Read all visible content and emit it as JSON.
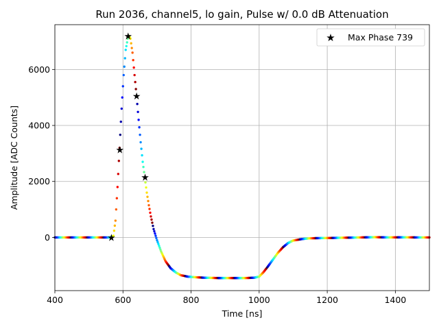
{
  "chart_data": {
    "type": "scatter",
    "title": "Run 2036, channel5, lo gain, Pulse w/ 0.0 dB Attenuation",
    "xlabel": "Time [ns]",
    "ylabel": "Amplitude [ADC Counts]",
    "xlim": [
      400,
      1500
    ],
    "ylim": [
      -1900,
      7600
    ],
    "xticks": [
      400,
      600,
      800,
      1000,
      1200,
      1400
    ],
    "yticks": [
      0,
      2000,
      4000,
      6000
    ],
    "grid": true,
    "legend_position": "top-right",
    "colormap": "jet",
    "series": [
      {
        "kind": "pulse-trace",
        "x": [
          400,
          560,
          566,
          572,
          578,
          584,
          590,
          596,
          602,
          608,
          614,
          618,
          622,
          628,
          634,
          640,
          646,
          652,
          658,
          664,
          670,
          676,
          682,
          690,
          700,
          712,
          725,
          740,
          755,
          770,
          790,
          810,
          840,
          880,
          920,
          960,
          985,
          1000,
          1012,
          1025,
          1040,
          1055,
          1070,
          1085,
          1100,
          1125,
          1150,
          1200,
          1250,
          1300,
          1340,
          1380,
          1420,
          1460,
          1500
        ],
        "y": [
          0,
          0,
          10,
          60,
          600,
          1800,
          3200,
          4600,
          5800,
          6700,
          7100,
          7200,
          7100,
          6600,
          5800,
          5050,
          4200,
          3400,
          2700,
          2150,
          1600,
          1150,
          750,
          300,
          -100,
          -500,
          -850,
          -1100,
          -1250,
          -1350,
          -1400,
          -1420,
          -1440,
          -1450,
          -1450,
          -1450,
          -1440,
          -1400,
          -1250,
          -1050,
          -800,
          -550,
          -350,
          -200,
          -110,
          -60,
          -30,
          -20,
          -10,
          0,
          10,
          0,
          5,
          0,
          0
        ]
      },
      {
        "name": "Max Phase 739",
        "kind": "markers",
        "x": [
          566,
          591,
          615,
          640,
          665
        ],
        "y": [
          0,
          3130,
          7200,
          5050,
          2150
        ]
      }
    ]
  }
}
